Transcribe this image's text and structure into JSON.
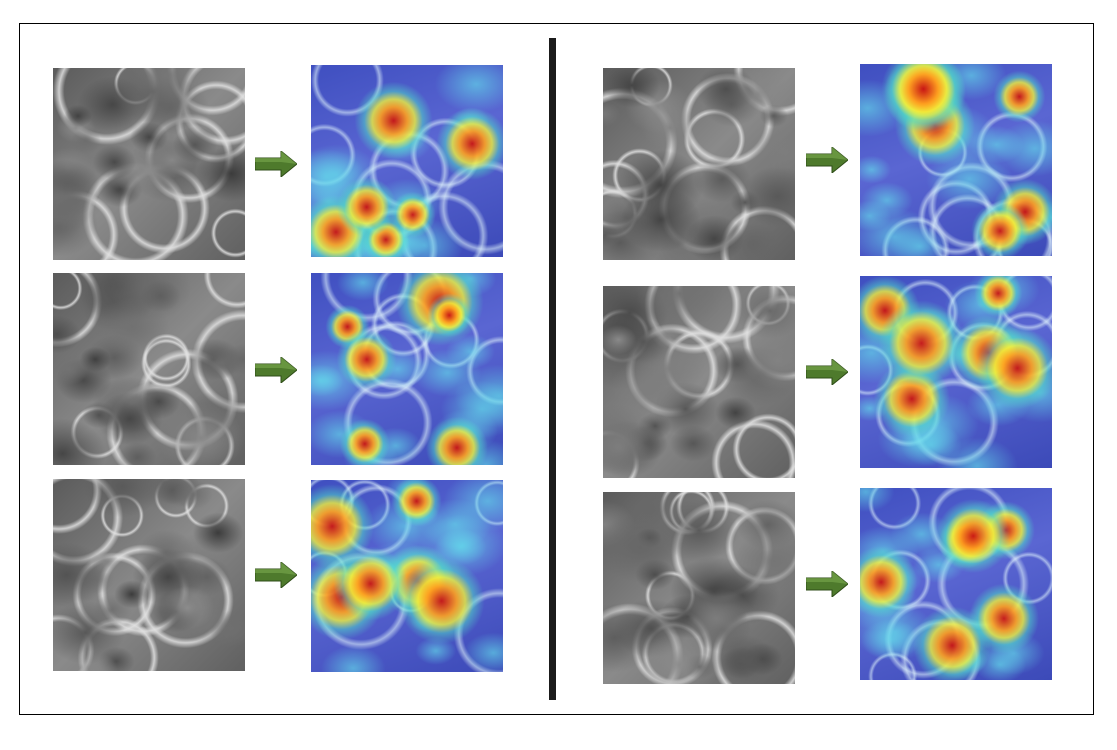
{
  "panels": [
    {
      "side": "left",
      "rows": [
        {
          "sem": "sem-micrograph-1",
          "heat": "heatmap-overlay-1"
        },
        {
          "sem": "sem-micrograph-2",
          "heat": "heatmap-overlay-2"
        },
        {
          "sem": "sem-micrograph-3",
          "heat": "heatmap-overlay-3"
        }
      ]
    },
    {
      "side": "right",
      "rows": [
        {
          "sem": "sem-micrograph-4",
          "heat": "heatmap-overlay-4"
        },
        {
          "sem": "sem-micrograph-5",
          "heat": "heatmap-overlay-5"
        },
        {
          "sem": "sem-micrograph-6",
          "heat": "heatmap-overlay-6"
        }
      ]
    }
  ],
  "colors": {
    "arrow_fill": "#4e7a2c",
    "arrow_dark": "#2f4d18",
    "divider": "#1b1b1b",
    "heat_base": "#4a56c8",
    "sem_base": "#707070"
  },
  "icons": {
    "arrow": "right-arrow-icon"
  }
}
